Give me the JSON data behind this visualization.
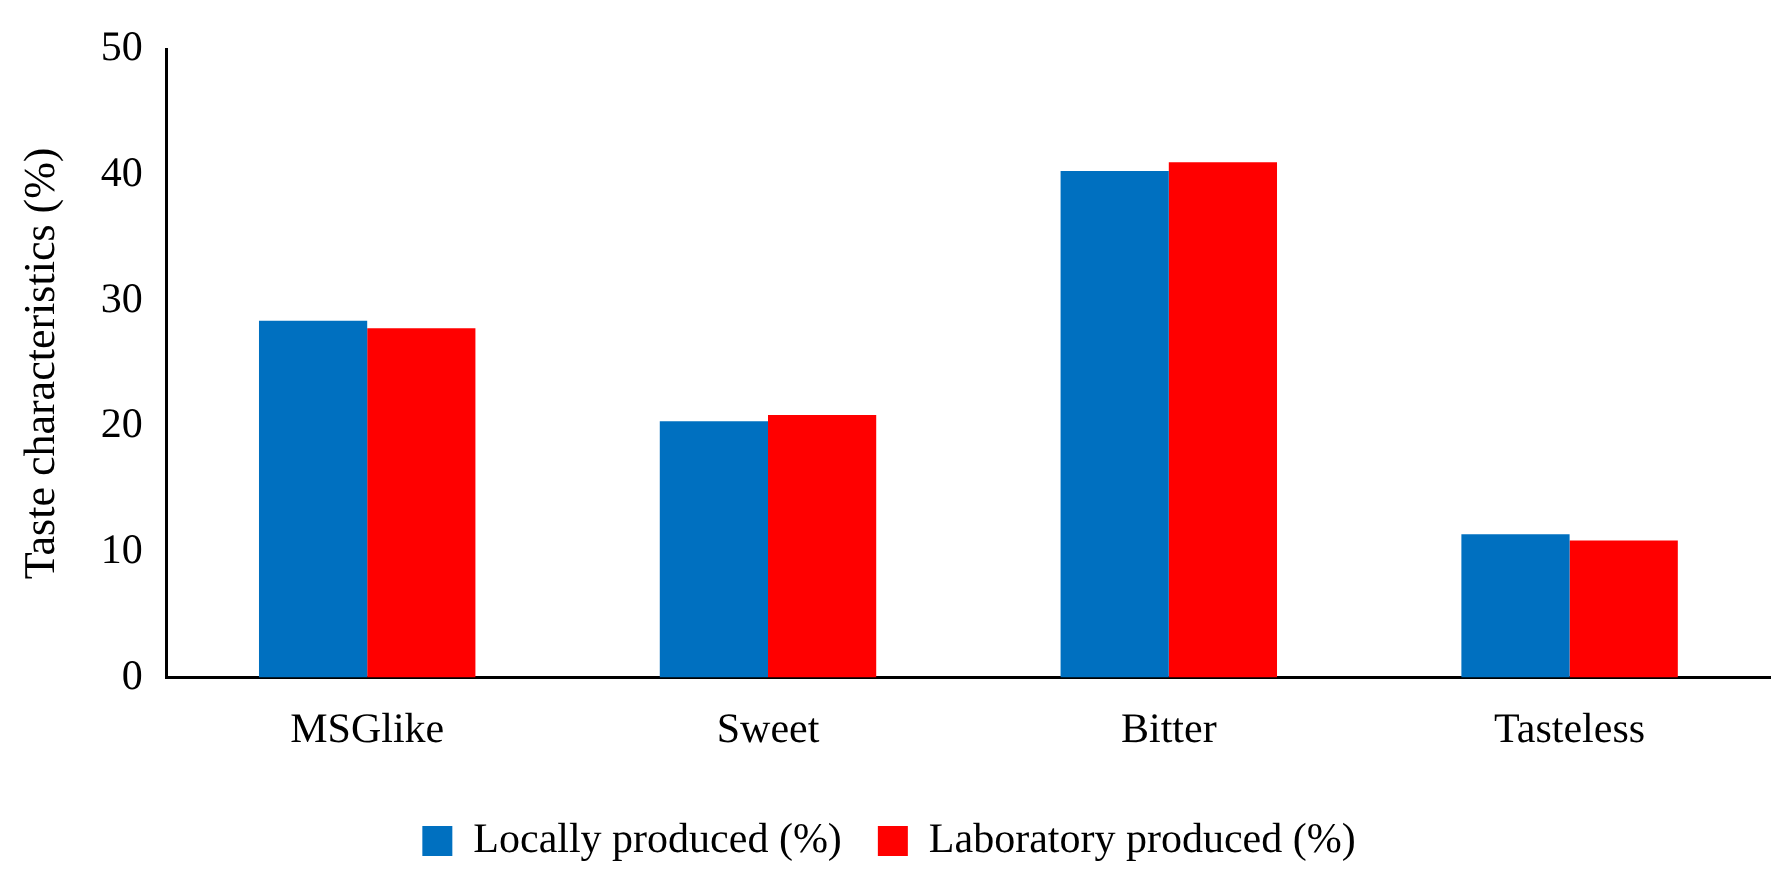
{
  "chart_data": {
    "type": "bar",
    "ylabel": "Taste characteristics (%)",
    "categories": [
      "MSGlike",
      "Sweet",
      "Bitter",
      "Tasteless"
    ],
    "series": [
      {
        "name": "Locally produced (%)",
        "color": "#0070c0",
        "values": [
          28.4,
          20.4,
          40.3,
          11.4
        ]
      },
      {
        "name": "Laboratory produced (%)",
        "color": "#ff0000",
        "values": [
          27.8,
          20.9,
          41.0,
          10.9
        ]
      }
    ],
    "ylim": [
      0,
      50
    ],
    "yticks": [
      0,
      10,
      20,
      30,
      40,
      50
    ],
    "grid": false,
    "legend": "bottom"
  }
}
